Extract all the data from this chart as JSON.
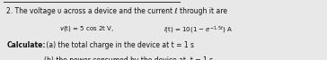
{
  "bg_color": "#e8e8e8",
  "text_color": "#111111",
  "divider_color": "#333333",
  "font_size_line1": 5.5,
  "font_size_eq": 5.0,
  "font_size_calc": 5.5,
  "line1": "2. The voltage υ across a device and the current ℓ through it are",
  "line3": "Calculate: (a) the total charge in the device at t = 1 s",
  "line4": "(b) the power consumed by the device at  t = 1 s."
}
